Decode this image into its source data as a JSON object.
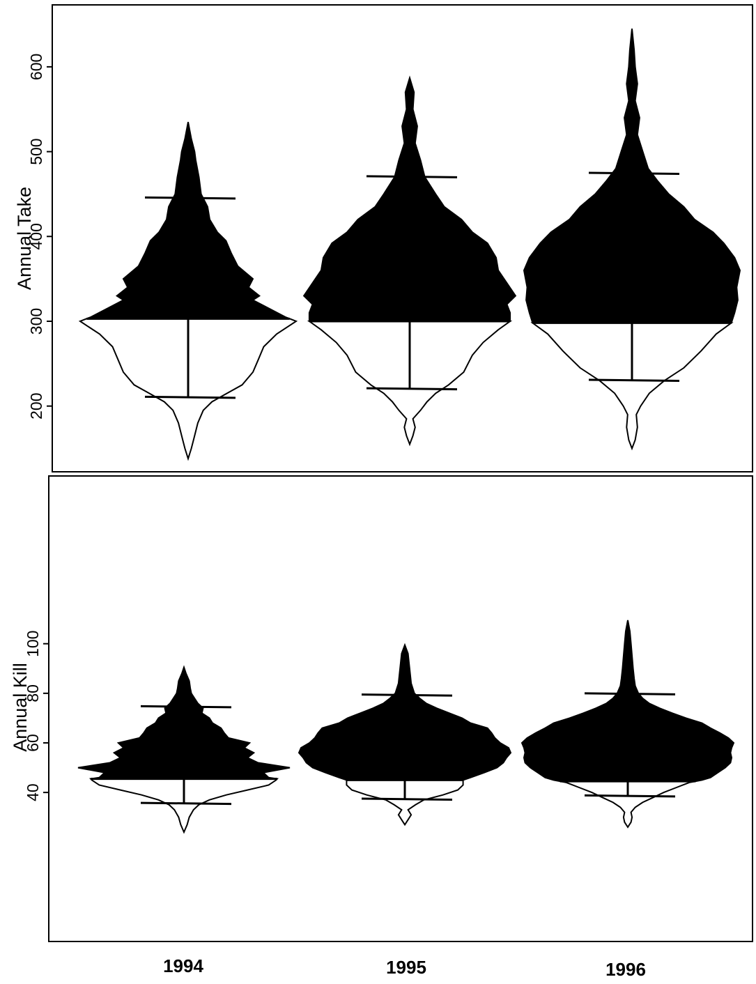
{
  "chart_data": [
    {
      "type": "violin",
      "ylabel": "Annual Take",
      "yticks": [
        200,
        300,
        400,
        500,
        600
      ],
      "ylim": [
        130,
        660
      ],
      "categories": [
        "1994",
        "1995",
        "1996"
      ],
      "split_shading": "upper portion filled black, lower portion outlined",
      "series": [
        {
          "category": "1994",
          "lower_quantile": 211,
          "median": 303,
          "upper_quantile": 446,
          "min": 138,
          "max": 535,
          "profile": [
            [
              138,
              0.0
            ],
            [
              150,
              0.03
            ],
            [
              165,
              0.06
            ],
            [
              180,
              0.09
            ],
            [
              195,
              0.14
            ],
            [
              205,
              0.22
            ],
            [
              215,
              0.36
            ],
            [
              225,
              0.5
            ],
            [
              240,
              0.6
            ],
            [
              255,
              0.65
            ],
            [
              270,
              0.7
            ],
            [
              285,
              0.82
            ],
            [
              300,
              1.0
            ],
            [
              305,
              0.9
            ],
            [
              315,
              0.75
            ],
            [
              325,
              0.6
            ],
            [
              330,
              0.66
            ],
            [
              340,
              0.56
            ],
            [
              350,
              0.6
            ],
            [
              365,
              0.46
            ],
            [
              380,
              0.4
            ],
            [
              395,
              0.35
            ],
            [
              405,
              0.27
            ],
            [
              420,
              0.2
            ],
            [
              435,
              0.18
            ],
            [
              450,
              0.12
            ],
            [
              470,
              0.1
            ],
            [
              490,
              0.07
            ],
            [
              500,
              0.06
            ],
            [
              515,
              0.03
            ],
            [
              535,
              0.0
            ]
          ]
        },
        {
          "category": "1995",
          "lower_quantile": 221,
          "median": 300,
          "upper_quantile": 471,
          "min": 155,
          "max": 587,
          "profile": [
            [
              155,
              0.0
            ],
            [
              165,
              0.03
            ],
            [
              175,
              0.05
            ],
            [
              185,
              0.03
            ],
            [
              195,
              0.1
            ],
            [
              205,
              0.16
            ],
            [
              215,
              0.24
            ],
            [
              225,
              0.36
            ],
            [
              240,
              0.5
            ],
            [
              260,
              0.58
            ],
            [
              275,
              0.68
            ],
            [
              290,
              0.82
            ],
            [
              300,
              0.93
            ],
            [
              310,
              0.93
            ],
            [
              320,
              0.9
            ],
            [
              330,
              0.98
            ],
            [
              345,
              0.9
            ],
            [
              360,
              0.82
            ],
            [
              375,
              0.8
            ],
            [
              392,
              0.72
            ],
            [
              405,
              0.58
            ],
            [
              420,
              0.48
            ],
            [
              435,
              0.32
            ],
            [
              450,
              0.24
            ],
            [
              470,
              0.14
            ],
            [
              490,
              0.1
            ],
            [
              510,
              0.05
            ],
            [
              530,
              0.07
            ],
            [
              550,
              0.03
            ],
            [
              570,
              0.04
            ],
            [
              587,
              0.0
            ]
          ]
        },
        {
          "category": "1996",
          "lower_quantile": 231,
          "median": 298,
          "upper_quantile": 475,
          "min": 150,
          "max": 645,
          "profile": [
            [
              150,
              0.0
            ],
            [
              160,
              0.03
            ],
            [
              175,
              0.05
            ],
            [
              190,
              0.04
            ],
            [
              200,
              0.08
            ],
            [
              215,
              0.16
            ],
            [
              230,
              0.3
            ],
            [
              245,
              0.48
            ],
            [
              265,
              0.64
            ],
            [
              285,
              0.78
            ],
            [
              298,
              0.92
            ],
            [
              310,
              0.95
            ],
            [
              325,
              0.98
            ],
            [
              340,
              0.97
            ],
            [
              360,
              1.0
            ],
            [
              375,
              0.95
            ],
            [
              392,
              0.85
            ],
            [
              405,
              0.75
            ],
            [
              420,
              0.58
            ],
            [
              435,
              0.48
            ],
            [
              450,
              0.34
            ],
            [
              465,
              0.24
            ],
            [
              480,
              0.15
            ],
            [
              500,
              0.1
            ],
            [
              520,
              0.05
            ],
            [
              540,
              0.07
            ],
            [
              560,
              0.03
            ],
            [
              580,
              0.05
            ],
            [
              600,
              0.03
            ],
            [
              620,
              0.02
            ],
            [
              645,
              0.0
            ]
          ]
        }
      ]
    },
    {
      "type": "violin",
      "ylabel": "Annual Kill",
      "yticks": [
        40,
        60,
        80,
        100
      ],
      "ylim": [
        21,
        114
      ],
      "categories": [
        "1994",
        "1995",
        "1996"
      ],
      "split_shading": "upper portion filled black, lower portion outlined",
      "series": [
        {
          "category": "1994",
          "lower_quantile": 35.8,
          "median": 45.5,
          "upper_quantile": 74.8,
          "min": 24.0,
          "max": 90.5,
          "profile": [
            [
              24.0,
              0.0
            ],
            [
              27,
              0.03
            ],
            [
              30,
              0.05
            ],
            [
              33,
              0.09
            ],
            [
              35,
              0.14
            ],
            [
              37,
              0.24
            ],
            [
              39,
              0.4
            ],
            [
              41,
              0.6
            ],
            [
              43,
              0.8
            ],
            [
              45,
              0.87
            ],
            [
              45.5,
              0.88
            ],
            [
              46,
              0.8
            ],
            [
              48,
              0.75
            ],
            [
              50,
              1.0
            ],
            [
              52,
              0.7
            ],
            [
              54,
              0.6
            ],
            [
              56,
              0.66
            ],
            [
              58,
              0.57
            ],
            [
              60,
              0.62
            ],
            [
              62,
              0.42
            ],
            [
              64,
              0.38
            ],
            [
              66,
              0.35
            ],
            [
              68,
              0.27
            ],
            [
              70,
              0.24
            ],
            [
              72,
              0.17
            ],
            [
              74,
              0.18
            ],
            [
              76,
              0.13
            ],
            [
              78,
              0.1
            ],
            [
              80,
              0.07
            ],
            [
              82,
              0.06
            ],
            [
              85,
              0.05
            ],
            [
              88,
              0.02
            ],
            [
              90.5,
              0.0
            ]
          ]
        },
        {
          "category": "1995",
          "lower_quantile": 37.5,
          "median": 45.0,
          "upper_quantile": 79.5,
          "min": 27.0,
          "max": 99.5,
          "profile": [
            [
              27.0,
              0.0
            ],
            [
              29,
              0.03
            ],
            [
              31,
              0.06
            ],
            [
              33,
              0.03
            ],
            [
              35,
              0.1
            ],
            [
              37,
              0.18
            ],
            [
              39,
              0.36
            ],
            [
              41,
              0.5
            ],
            [
              43,
              0.55
            ],
            [
              45,
              0.55
            ],
            [
              46,
              0.62
            ],
            [
              48,
              0.75
            ],
            [
              50,
              0.87
            ],
            [
              52,
              0.93
            ],
            [
              54,
              0.96
            ],
            [
              56,
              1.0
            ],
            [
              58,
              0.98
            ],
            [
              60,
              0.9
            ],
            [
              62,
              0.85
            ],
            [
              64,
              0.82
            ],
            [
              66,
              0.78
            ],
            [
              68,
              0.62
            ],
            [
              70,
              0.54
            ],
            [
              72,
              0.42
            ],
            [
              74,
              0.3
            ],
            [
              76,
              0.2
            ],
            [
              78,
              0.14
            ],
            [
              80,
              0.09
            ],
            [
              84,
              0.06
            ],
            [
              88,
              0.05
            ],
            [
              92,
              0.04
            ],
            [
              96,
              0.03
            ],
            [
              99.5,
              0.0
            ]
          ]
        },
        {
          "category": "1996",
          "lower_quantile": 38.8,
          "median": 44.5,
          "upper_quantile": 80.0,
          "min": 26.0,
          "max": 109.5,
          "profile": [
            [
              26.0,
              0.0
            ],
            [
              28,
              0.03
            ],
            [
              30,
              0.04
            ],
            [
              32,
              0.03
            ],
            [
              34,
              0.07
            ],
            [
              36,
              0.14
            ],
            [
              38,
              0.24
            ],
            [
              40,
              0.34
            ],
            [
              42,
              0.46
            ],
            [
              44,
              0.58
            ],
            [
              45,
              0.7
            ],
            [
              46,
              0.78
            ],
            [
              48,
              0.85
            ],
            [
              50,
              0.92
            ],
            [
              52,
              0.97
            ],
            [
              54,
              0.98
            ],
            [
              56,
              0.97
            ],
            [
              58,
              0.98
            ],
            [
              60,
              1.0
            ],
            [
              62,
              0.95
            ],
            [
              64,
              0.87
            ],
            [
              66,
              0.78
            ],
            [
              68,
              0.7
            ],
            [
              70,
              0.55
            ],
            [
              72,
              0.42
            ],
            [
              74,
              0.3
            ],
            [
              76,
              0.2
            ],
            [
              78,
              0.14
            ],
            [
              80,
              0.1
            ],
            [
              83,
              0.07
            ],
            [
              86,
              0.06
            ],
            [
              90,
              0.05
            ],
            [
              95,
              0.04
            ],
            [
              100,
              0.03
            ],
            [
              105,
              0.02
            ],
            [
              109.5,
              0.0
            ]
          ]
        }
      ]
    }
  ]
}
